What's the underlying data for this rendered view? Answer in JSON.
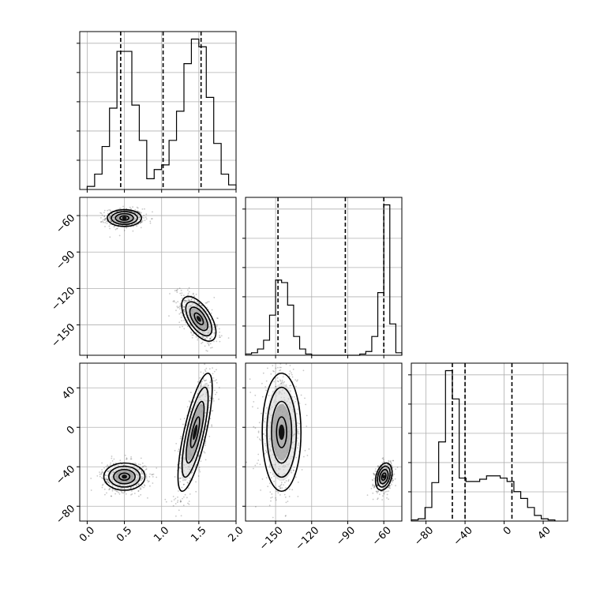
{
  "chart_data": {
    "type": "corner",
    "title": "",
    "parameters": [
      {
        "name": "",
        "range": [
          -0.1,
          2.0
        ],
        "ticks": [
          0.0,
          0.5,
          1.0,
          1.5,
          2.0
        ],
        "tick_labels": [
          "0.0",
          "0.5",
          "1.0",
          "1.5",
          "2.0"
        ],
        "quantiles": [
          0.45,
          1.02,
          1.53
        ],
        "histogram": {
          "bin_edges": [
            0.0,
            0.1,
            0.2,
            0.3,
            0.4,
            0.5,
            0.6,
            0.7,
            0.8,
            0.9,
            1.0,
            1.1,
            1.2,
            1.3,
            1.4,
            1.5,
            1.6,
            1.7,
            1.8,
            1.9,
            2.0
          ],
          "counts": [
            2,
            10,
            28,
            53,
            90,
            90,
            55,
            32,
            7,
            13,
            16,
            32,
            51,
            82,
            98,
            93,
            60,
            30,
            10,
            3
          ]
        }
      },
      {
        "name": "",
        "range": [
          -175,
          -45
        ],
        "ticks": [
          -150,
          -120,
          -90,
          -60
        ],
        "tick_labels": [
          "−150",
          "−120",
          "−90",
          "−60"
        ],
        "quantiles": [
          -148,
          -92,
          -60
        ],
        "histogram": {
          "bin_edges": [
            -175,
            -170,
            -165,
            -160,
            -155,
            -150,
            -145,
            -140,
            -135,
            -130,
            -125,
            -120,
            -115,
            -110,
            -105,
            -100,
            -95,
            -90,
            -85,
            -80,
            -75,
            -70,
            -65,
            -60,
            -55,
            -50,
            -45
          ],
          "counts": [
            1,
            2,
            5,
            12,
            32,
            60,
            58,
            40,
            15,
            5,
            1,
            0,
            0,
            0,
            0,
            0,
            0,
            0,
            0,
            1,
            3,
            15,
            50,
            120,
            25,
            2
          ]
        }
      },
      {
        "name": "",
        "range": [
          -95,
          65
        ],
        "ticks": [
          -80,
          -40,
          0,
          40
        ],
        "tick_labels": [
          "−80",
          "−40",
          "0",
          "40"
        ],
        "quantiles": [
          -53,
          -40,
          8
        ],
        "histogram": {
          "bin_edges": [
            -95,
            -88,
            -81,
            -74,
            -67,
            -60,
            -53,
            -46,
            -39,
            -32,
            -25,
            -18,
            -11,
            -4,
            3,
            10,
            17,
            24,
            31,
            38,
            45,
            52
          ],
          "counts": [
            1,
            2,
            12,
            34,
            70,
            133,
            108,
            38,
            35,
            35,
            37,
            40,
            40,
            38,
            35,
            26,
            20,
            12,
            5,
            2,
            1
          ]
        }
      }
    ],
    "row_tick_labels": {
      "param2": [
        "−150",
        "−120",
        "−90",
        "−60"
      ],
      "param3": [
        "−80",
        "−40",
        "0",
        "40"
      ]
    },
    "density_clusters": [
      {
        "panel": "p2_vs_p1",
        "center": [
          0.5,
          -62
        ],
        "spread": [
          0.1,
          3.0
        ],
        "corr": 0.0,
        "n": 650
      },
      {
        "panel": "p2_vs_p1",
        "center": [
          1.5,
          -145
        ],
        "spread": [
          0.1,
          8.0
        ],
        "corr": -0.6,
        "n": 650
      },
      {
        "panel": "p3_vs_p1",
        "center": [
          0.5,
          -50
        ],
        "spread": [
          0.12,
          6.0
        ],
        "corr": 0.0,
        "n": 650
      },
      {
        "panel": "p3_vs_p1",
        "center": [
          1.45,
          -5
        ],
        "spread": [
          0.1,
          26.0
        ],
        "corr": 0.75,
        "n": 650
      },
      {
        "panel": "p3_vs_p2",
        "center": [
          -145,
          -5
        ],
        "spread": [
          7.0,
          26.0
        ],
        "corr": 0.0,
        "n": 650
      },
      {
        "panel": "p3_vs_p2",
        "center": [
          -60,
          -50
        ],
        "spread": [
          3.0,
          6.0
        ],
        "corr": 0.3,
        "n": 500
      }
    ],
    "grid": true
  }
}
